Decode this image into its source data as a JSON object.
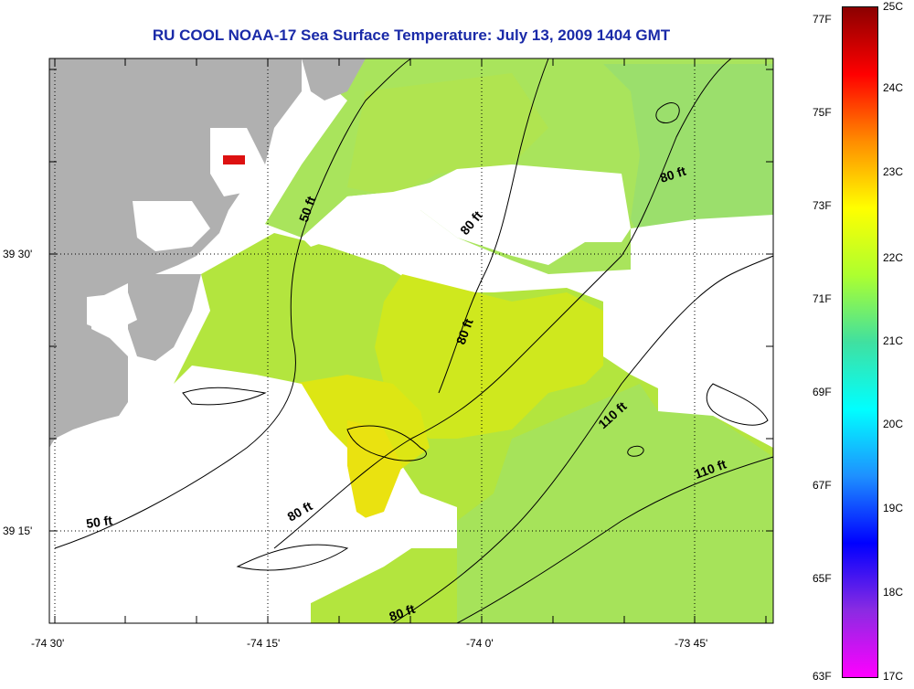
{
  "title": "RU COOL  NOAA-17  Sea Surface Temperature:  July 13, 2009 1404 GMT",
  "axes": {
    "x_ticks": [
      "-74 30'",
      "-74 15'",
      "-74 0'",
      "-73 45'"
    ],
    "y_ticks": [
      "39 30'",
      "39 15'"
    ]
  },
  "contours": {
    "labels": [
      "50 ft",
      "50 ft",
      "80 ft",
      "80 ft",
      "80 ft",
      "80 ft",
      "80 ft",
      "110 ft",
      "110 ft"
    ]
  },
  "colorbar": {
    "fahrenheit": [
      "77F",
      "75F",
      "73F",
      "71F",
      "69F",
      "67F",
      "65F",
      "63F"
    ],
    "celsius": [
      "25C",
      "24C",
      "23C",
      "22C",
      "21C",
      "20C",
      "19C",
      "18C",
      "17C"
    ],
    "gradient_colors": [
      "#8b0000",
      "#ff0000",
      "#ff8c00",
      "#ffff00",
      "#adff2f",
      "#40e0a0",
      "#00ffff",
      "#1e90ff",
      "#0000ff",
      "#8a2be2",
      "#ff00ff"
    ]
  },
  "colors": {
    "land": "#b0b0b0",
    "no_data": "#ffffff",
    "title": "#1a2aa8",
    "marker": "#dd1111"
  }
}
